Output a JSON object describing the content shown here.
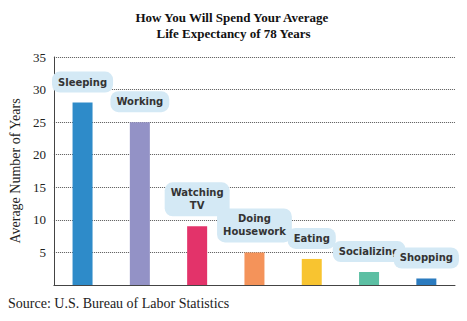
{
  "chart_data": {
    "type": "bar",
    "title": "How You Will Spend Your Average Life Expectancy of 78 Years",
    "y_label": "Average Number of Years",
    "source": "Source: U.S. Bureau of Labor Statistics",
    "categories": [
      "Sleeping",
      "Working",
      "Watching TV",
      "Doing Housework",
      "Eating",
      "Socializing",
      "Shopping"
    ],
    "values": [
      28,
      25,
      9,
      5,
      4,
      2,
      1
    ],
    "colors": [
      "#2e8bc9",
      "#9392c6",
      "#e3336a",
      "#f4935a",
      "#f8c430",
      "#5cbfa3",
      "#2b7bbf"
    ],
    "ylim": [
      0,
      35
    ],
    "yticks": [
      5,
      10,
      15,
      20,
      25,
      30,
      35
    ],
    "grid": true,
    "tick_labels": "y"
  }
}
